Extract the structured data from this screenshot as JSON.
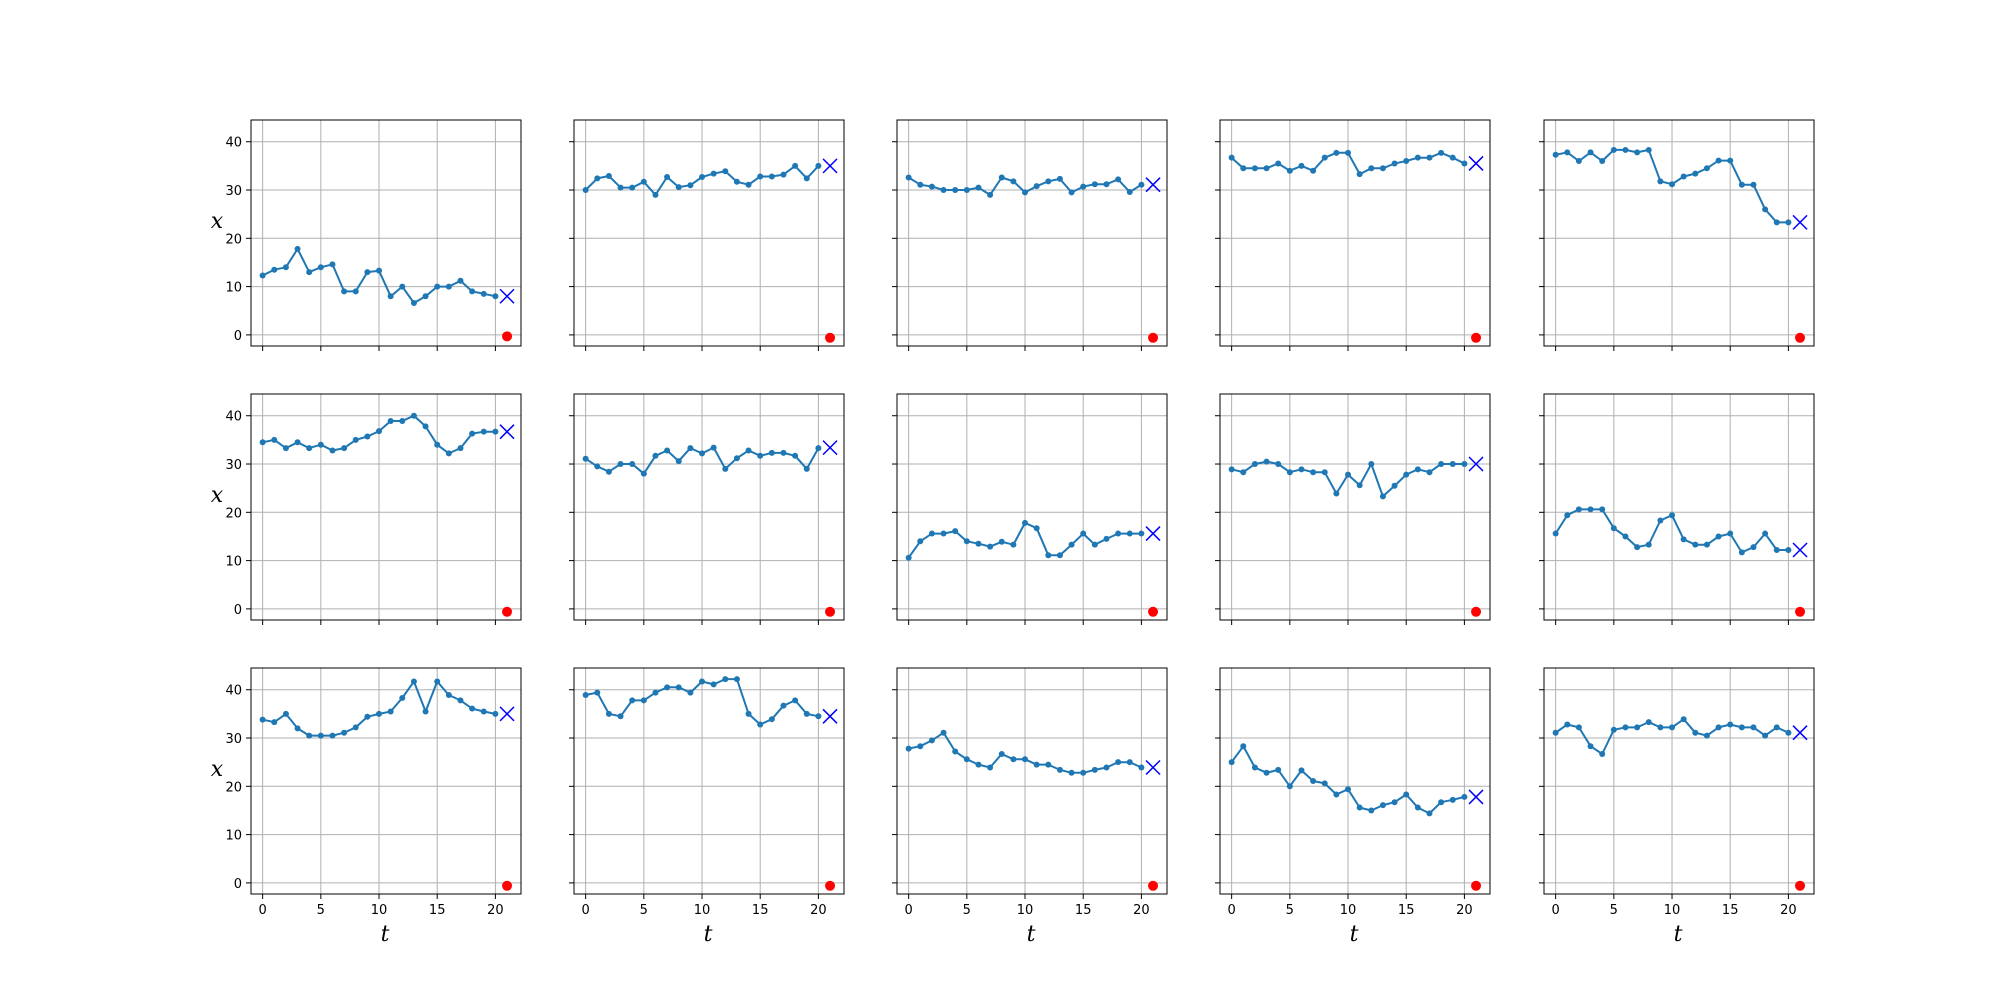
{
  "figure": {
    "xlabel": "t",
    "ylabel": "x",
    "x_ticks": [
      0,
      5,
      10,
      15,
      20
    ],
    "y_ticks": [
      0,
      10,
      20,
      30,
      40
    ],
    "colors": {
      "series": "#1f77b4",
      "forecast_marker": "#0000ff",
      "anomaly_marker": "#ff0000",
      "grid": "#b0b0b0",
      "frame": "#000000"
    }
  },
  "chart_data": {
    "type": "line",
    "layout": "grid 3 rows x 5 columns, shared x and y axes",
    "xlim": [
      -1,
      22.2
    ],
    "ylim": [
      -2.3,
      44.5
    ],
    "grid": true,
    "markers": {
      "forecast": "x",
      "anomaly": "o"
    },
    "panels": [
      {
        "row": 0,
        "col": 0,
        "values": [
          12.3,
          13.5,
          14.0,
          17.8,
          13.0,
          14.0,
          14.6,
          9.0,
          9.0,
          13.0,
          13.3,
          8.0,
          10.0,
          6.6,
          8.0,
          10.0,
          10.0,
          11.2,
          9.0,
          8.5,
          8.0
        ],
        "forecast": {
          "x": 21,
          "y": 8.0
        },
        "anomaly": {
          "x": 21,
          "y": -0.3
        }
      },
      {
        "row": 0,
        "col": 1,
        "values": [
          30.0,
          32.4,
          32.9,
          30.5,
          30.5,
          31.7,
          29.0,
          32.7,
          30.6,
          31.0,
          32.7,
          33.4,
          33.9,
          31.7,
          31.1,
          32.8,
          32.8,
          33.2,
          35.0,
          32.4,
          35.0
        ],
        "forecast": {
          "x": 21,
          "y": 35.0
        },
        "anomaly": {
          "x": 21,
          "y": -0.6
        }
      },
      {
        "row": 0,
        "col": 2,
        "values": [
          32.6,
          31.1,
          30.7,
          30.0,
          30.0,
          30.0,
          30.5,
          29.0,
          32.6,
          31.8,
          29.5,
          30.8,
          31.8,
          32.3,
          29.5,
          30.7,
          31.2,
          31.2,
          32.2,
          29.6,
          31.1
        ],
        "forecast": {
          "x": 21,
          "y": 31.1
        },
        "anomaly": {
          "x": 21,
          "y": -0.6
        }
      },
      {
        "row": 0,
        "col": 3,
        "values": [
          36.7,
          34.5,
          34.5,
          34.5,
          35.5,
          34.0,
          35.0,
          34.0,
          36.7,
          37.7,
          37.7,
          33.3,
          34.5,
          34.5,
          35.5,
          36.0,
          36.7,
          36.7,
          37.7,
          36.7,
          35.5
        ],
        "forecast": {
          "x": 21,
          "y": 35.5
        },
        "anomaly": {
          "x": 21,
          "y": -0.6
        }
      },
      {
        "row": 0,
        "col": 4,
        "values": [
          37.3,
          37.8,
          36.0,
          37.8,
          36.0,
          38.3,
          38.3,
          37.8,
          38.3,
          31.8,
          31.2,
          32.8,
          33.4,
          34.5,
          36.1,
          36.1,
          31.1,
          31.1,
          26.0,
          23.3,
          23.3
        ],
        "forecast": {
          "x": 21,
          "y": 23.3
        },
        "anomaly": {
          "x": 21,
          "y": -0.6
        }
      },
      {
        "row": 1,
        "col": 0,
        "values": [
          34.5,
          35.0,
          33.3,
          34.5,
          33.3,
          34.0,
          32.8,
          33.3,
          35.0,
          35.7,
          36.8,
          38.9,
          38.9,
          40.0,
          37.8,
          34.0,
          32.2,
          33.3,
          36.3,
          36.7,
          36.7
        ],
        "forecast": {
          "x": 21,
          "y": 36.7
        },
        "anomaly": {
          "x": 21,
          "y": -0.6
        }
      },
      {
        "row": 1,
        "col": 1,
        "values": [
          31.1,
          29.5,
          28.4,
          30.0,
          30.0,
          28.0,
          31.7,
          32.8,
          30.6,
          33.3,
          32.2,
          33.4,
          29.0,
          31.2,
          32.8,
          31.7,
          32.3,
          32.3,
          31.7,
          29.0,
          33.3
        ],
        "forecast": {
          "x": 21,
          "y": 33.4
        },
        "anomaly": {
          "x": 21,
          "y": -0.6
        }
      },
      {
        "row": 1,
        "col": 2,
        "values": [
          10.6,
          14.0,
          15.6,
          15.6,
          16.1,
          14.0,
          13.5,
          12.9,
          13.9,
          13.3,
          17.8,
          16.7,
          11.1,
          11.1,
          13.3,
          15.6,
          13.3,
          14.5,
          15.6,
          15.6,
          15.6
        ],
        "forecast": {
          "x": 21,
          "y": 15.6
        },
        "anomaly": {
          "x": 21,
          "y": -0.6
        }
      },
      {
        "row": 1,
        "col": 3,
        "values": [
          28.9,
          28.3,
          30.0,
          30.5,
          30.0,
          28.3,
          28.9,
          28.3,
          28.3,
          23.9,
          27.8,
          25.6,
          30.0,
          23.3,
          25.5,
          27.8,
          28.9,
          28.3,
          30.0,
          30.0,
          30.0
        ],
        "forecast": {
          "x": 21,
          "y": 30.0
        },
        "anomaly": {
          "x": 21,
          "y": -0.6
        }
      },
      {
        "row": 1,
        "col": 4,
        "values": [
          15.6,
          19.4,
          20.6,
          20.6,
          20.6,
          16.7,
          15.0,
          12.8,
          13.3,
          18.3,
          19.4,
          14.4,
          13.3,
          13.3,
          15.0,
          15.6,
          11.7,
          12.8,
          15.6,
          12.2,
          12.2
        ],
        "forecast": {
          "x": 21,
          "y": 12.2
        },
        "anomaly": {
          "x": 21,
          "y": -0.6
        }
      },
      {
        "row": 2,
        "col": 0,
        "values": [
          33.8,
          33.3,
          35.0,
          32.0,
          30.5,
          30.5,
          30.5,
          31.1,
          32.2,
          34.4,
          35.0,
          35.5,
          38.3,
          41.7,
          35.5,
          41.7,
          38.9,
          37.8,
          36.1,
          35.5,
          35.0
        ],
        "forecast": {
          "x": 21,
          "y": 35.0
        },
        "anomaly": {
          "x": 21,
          "y": -0.6
        }
      },
      {
        "row": 2,
        "col": 1,
        "values": [
          38.9,
          39.4,
          35.0,
          34.5,
          37.8,
          37.8,
          39.4,
          40.5,
          40.5,
          39.4,
          41.7,
          41.1,
          42.2,
          42.2,
          35.0,
          32.8,
          33.9,
          36.7,
          37.8,
          35.0,
          34.5
        ],
        "forecast": {
          "x": 21,
          "y": 34.5
        },
        "anomaly": {
          "x": 21,
          "y": -0.6
        }
      },
      {
        "row": 2,
        "col": 2,
        "values": [
          27.8,
          28.3,
          29.5,
          31.1,
          27.2,
          25.6,
          24.5,
          23.9,
          26.7,
          25.6,
          25.6,
          24.5,
          24.5,
          23.4,
          22.8,
          22.8,
          23.4,
          23.9,
          25.0,
          25.0,
          23.9
        ],
        "forecast": {
          "x": 21,
          "y": 23.9
        },
        "anomaly": {
          "x": 21,
          "y": -0.6
        }
      },
      {
        "row": 2,
        "col": 3,
        "values": [
          25.0,
          28.3,
          23.9,
          22.8,
          23.4,
          20.0,
          23.3,
          21.1,
          20.6,
          18.3,
          19.4,
          15.6,
          15.0,
          16.1,
          16.7,
          18.3,
          15.6,
          14.4,
          16.7,
          17.2,
          17.8
        ],
        "forecast": {
          "x": 21,
          "y": 17.8
        },
        "anomaly": {
          "x": 21,
          "y": -0.6
        }
      },
      {
        "row": 2,
        "col": 4,
        "values": [
          31.1,
          32.8,
          32.2,
          28.3,
          26.7,
          31.7,
          32.2,
          32.2,
          33.3,
          32.2,
          32.2,
          33.9,
          31.1,
          30.5,
          32.2,
          32.8,
          32.2,
          32.2,
          30.5,
          32.2,
          31.1
        ],
        "forecast": {
          "x": 21,
          "y": 31.1
        },
        "anomaly": {
          "x": 21,
          "y": -0.6
        }
      }
    ]
  }
}
